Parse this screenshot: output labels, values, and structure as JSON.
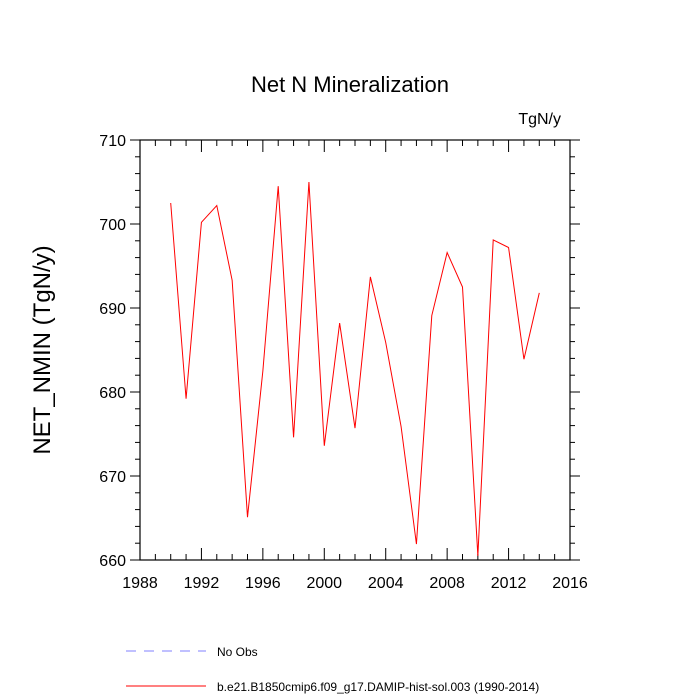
{
  "chart_data": {
    "type": "line",
    "title": "Net N Mineralization",
    "units_label": "TgN/y",
    "xlabel": "",
    "ylabel": "NET_NMIN  (TgN/y)",
    "xlim": [
      1988,
      2016
    ],
    "ylim": [
      660,
      710
    ],
    "x_ticks": [
      1988,
      1992,
      1996,
      2000,
      2004,
      2008,
      2012,
      2016
    ],
    "y_ticks": [
      660,
      670,
      680,
      690,
      700,
      710
    ],
    "series": [
      {
        "name": "b.e21.B1850cmip6.f09_g17.DAMIP-hist-sol.003 (1990-2014)",
        "color": "#ff0000",
        "style": "solid",
        "x": [
          1990,
          1991,
          1992,
          1993,
          1994,
          1995,
          1996,
          1997,
          1998,
          1999,
          2000,
          2001,
          2002,
          2003,
          2004,
          2005,
          2006,
          2007,
          2008,
          2009,
          2010,
          2011,
          2012,
          2013,
          2014
        ],
        "values": [
          702.5,
          679.2,
          700.2,
          702.2,
          693.3,
          665.1,
          682.5,
          704.5,
          674.6,
          705.0,
          673.6,
          688.2,
          675.7,
          693.7,
          685.9,
          675.9,
          661.9,
          689.1,
          696.6,
          692.5,
          660.5,
          698.1,
          697.2,
          683.9,
          691.8
        ]
      }
    ],
    "legend": [
      {
        "label": "No Obs",
        "color": "#8080ff",
        "style": "dashed"
      },
      {
        "label": "b.e21.B1850cmip6.f09_g17.DAMIP-hist-sol.003 (1990-2014)",
        "color": "#ff0000",
        "style": "solid"
      }
    ]
  }
}
